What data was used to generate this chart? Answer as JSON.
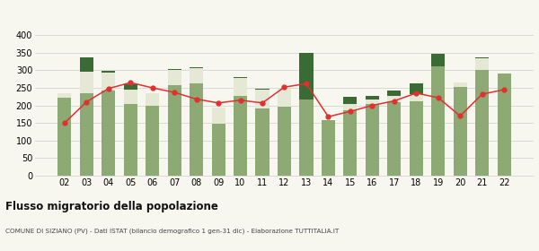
{
  "years": [
    "02",
    "03",
    "04",
    "05",
    "06",
    "07",
    "08",
    "09",
    "10",
    "11",
    "12",
    "13",
    "14",
    "15",
    "16",
    "17",
    "18",
    "19",
    "20",
    "21",
    "22"
  ],
  "iscritti_comuni": [
    222,
    235,
    242,
    205,
    200,
    258,
    262,
    148,
    228,
    192,
    197,
    217,
    157,
    187,
    205,
    210,
    213,
    310,
    253,
    302,
    290
  ],
  "iscritti_estero": [
    12,
    62,
    52,
    40,
    35,
    42,
    44,
    45,
    50,
    53,
    50,
    0,
    0,
    17,
    13,
    18,
    20,
    0,
    13,
    33,
    0
  ],
  "iscritti_altri": [
    0,
    40,
    5,
    15,
    0,
    3,
    3,
    0,
    3,
    3,
    0,
    133,
    0,
    20,
    10,
    15,
    30,
    38,
    0,
    3,
    0
  ],
  "cancellati": [
    150,
    210,
    248,
    265,
    250,
    237,
    218,
    207,
    215,
    207,
    252,
    262,
    168,
    183,
    200,
    213,
    235,
    222,
    170,
    232,
    245
  ],
  "color_comuni": "#8daa74",
  "color_estero": "#e5e8d5",
  "color_altri": "#3a6b35",
  "color_cancellati": "#e03030",
  "ylim": [
    0,
    400
  ],
  "yticks": [
    0,
    50,
    100,
    150,
    200,
    250,
    300,
    350,
    400
  ],
  "title": "Flusso migratorio della popolazione",
  "subtitle": "COMUNE DI SIZIANO (PV) - Dati ISTAT (bilancio demografico 1 gen-31 dic) - Elaborazione TUTTITALIA.IT",
  "bg_color": "#f7f7ef"
}
